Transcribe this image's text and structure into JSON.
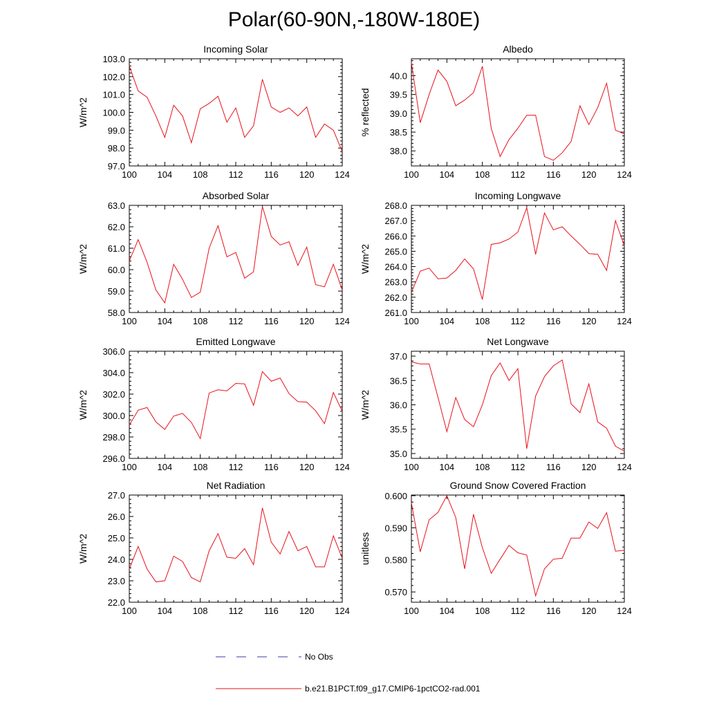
{
  "title": "Polar(60-90N,-180W-180E)",
  "colors": {
    "model_line": "#e8101a",
    "obs_line": "#3a3aa8",
    "axis": "#000000"
  },
  "legend": {
    "obs_label": "No Obs",
    "model_label": "b.e21.B1PCT.f09_g17.CMIP6-1pctCO2-rad.001"
  },
  "chart_data": [
    {
      "type": "line",
      "title": "Incoming Solar",
      "ylabel": "W/m^2",
      "xlim": [
        100,
        124
      ],
      "ylim": [
        97.0,
        103.0
      ],
      "xticks": [
        "100",
        "104",
        "108",
        "112",
        "116",
        "120",
        "124"
      ],
      "yticks": [
        "97.0",
        "98.0",
        "99.0",
        "100.0",
        "101.0",
        "102.0",
        "103.0"
      ],
      "x": [
        100,
        101,
        102,
        103,
        104,
        105,
        106,
        107,
        108,
        109,
        110,
        111,
        112,
        113,
        114,
        115,
        116,
        117,
        118,
        119,
        120,
        121,
        122,
        123,
        124
      ],
      "series": [
        {
          "name": "b.e21.B1PCT.f09_g17.CMIP6-1pctCO2-rad.001",
          "values": [
            102.6,
            101.2,
            100.85,
            99.8,
            98.6,
            100.4,
            99.8,
            98.3,
            100.2,
            100.5,
            100.9,
            99.45,
            100.25,
            98.6,
            99.25,
            101.85,
            100.3,
            100.0,
            100.25,
            99.8,
            100.3,
            98.6,
            99.35,
            99.0,
            97.8
          ]
        }
      ]
    },
    {
      "type": "line",
      "title": "Albedo",
      "ylabel": "% reflected",
      "xlim": [
        100,
        124
      ],
      "ylim": [
        37.6,
        40.45
      ],
      "xticks": [
        "100",
        "104",
        "108",
        "112",
        "116",
        "120",
        "124"
      ],
      "yticks": [
        "38.0",
        "38.5",
        "39.0",
        "39.5",
        "40.0"
      ],
      "x": [
        100,
        101,
        102,
        103,
        104,
        105,
        106,
        107,
        108,
        109,
        110,
        111,
        112,
        113,
        114,
        115,
        116,
        117,
        118,
        119,
        120,
        121,
        122,
        123,
        124
      ],
      "series": [
        {
          "name": "b.e21.B1PCT.f09_g17.CMIP6-1pctCO2-rad.001",
          "values": [
            40.35,
            38.75,
            39.5,
            40.15,
            39.85,
            39.2,
            39.35,
            39.55,
            40.25,
            38.6,
            37.85,
            38.3,
            38.6,
            38.95,
            38.95,
            37.85,
            37.75,
            37.95,
            38.25,
            39.2,
            38.7,
            39.15,
            39.8,
            38.55,
            38.45
          ]
        }
      ]
    },
    {
      "type": "line",
      "title": "Absorbed Solar",
      "ylabel": "W/m^2",
      "xlim": [
        100,
        124
      ],
      "ylim": [
        58.0,
        63.0
      ],
      "xticks": [
        "100",
        "104",
        "108",
        "112",
        "116",
        "120",
        "124"
      ],
      "yticks": [
        "58.0",
        "59.0",
        "60.0",
        "61.0",
        "62.0",
        "63.0"
      ],
      "x": [
        100,
        101,
        102,
        103,
        104,
        105,
        106,
        107,
        108,
        109,
        110,
        111,
        112,
        113,
        114,
        115,
        116,
        117,
        118,
        119,
        120,
        121,
        122,
        123,
        124
      ],
      "series": [
        {
          "name": "b.e21.B1PCT.f09_g17.CMIP6-1pctCO2-rad.001",
          "values": [
            60.4,
            61.4,
            60.35,
            59.05,
            58.45,
            60.25,
            59.55,
            58.7,
            58.95,
            61.0,
            62.05,
            60.6,
            60.8,
            59.6,
            59.9,
            62.95,
            61.55,
            61.15,
            61.3,
            60.2,
            61.05,
            59.3,
            59.2,
            60.25,
            59.05
          ]
        }
      ]
    },
    {
      "type": "line",
      "title": "Incoming Longwave",
      "ylabel": "W/m^2",
      "xlim": [
        100,
        124
      ],
      "ylim": [
        261.0,
        268.0
      ],
      "xticks": [
        "100",
        "104",
        "108",
        "112",
        "116",
        "120",
        "124"
      ],
      "yticks": [
        "261.0",
        "262.0",
        "263.0",
        "264.0",
        "265.0",
        "266.0",
        "267.0",
        "268.0"
      ],
      "x": [
        100,
        101,
        102,
        103,
        104,
        105,
        106,
        107,
        108,
        109,
        110,
        111,
        112,
        113,
        114,
        115,
        116,
        117,
        118,
        119,
        120,
        121,
        122,
        123,
        124
      ],
      "series": [
        {
          "name": "b.e21.B1PCT.f09_g17.CMIP6-1pctCO2-rad.001",
          "values": [
            262.3,
            263.7,
            263.9,
            263.2,
            263.25,
            263.75,
            264.5,
            263.85,
            261.85,
            265.45,
            265.55,
            265.8,
            266.25,
            267.85,
            264.8,
            267.5,
            266.4,
            266.6,
            266.0,
            265.45,
            264.85,
            264.8,
            263.75,
            267.0,
            265.35
          ]
        }
      ]
    },
    {
      "type": "line",
      "title": "Emitted Longwave",
      "ylabel": "W/m^2",
      "xlim": [
        100,
        124
      ],
      "ylim": [
        296.0,
        306.0
      ],
      "xticks": [
        "100",
        "104",
        "108",
        "112",
        "116",
        "120",
        "124"
      ],
      "yticks": [
        "296.0",
        "298.0",
        "300.0",
        "302.0",
        "304.0",
        "306.0"
      ],
      "x": [
        100,
        101,
        102,
        103,
        104,
        105,
        106,
        107,
        108,
        109,
        110,
        111,
        112,
        113,
        114,
        115,
        116,
        117,
        118,
        119,
        120,
        121,
        122,
        123,
        124
      ],
      "series": [
        {
          "name": "b.e21.B1PCT.f09_g17.CMIP6-1pctCO2-rad.001",
          "values": [
            299.1,
            300.5,
            300.75,
            299.4,
            298.7,
            299.95,
            300.2,
            299.35,
            297.85,
            302.1,
            302.4,
            302.3,
            303.0,
            302.95,
            300.95,
            304.1,
            303.2,
            303.5,
            302.05,
            301.3,
            301.25,
            300.45,
            299.25,
            302.15,
            300.4
          ]
        }
      ]
    },
    {
      "type": "line",
      "title": "Net Longwave",
      "ylabel": "W/m^2",
      "xlim": [
        100,
        124
      ],
      "ylim": [
        34.9,
        37.1
      ],
      "xticks": [
        "100",
        "104",
        "108",
        "112",
        "116",
        "120",
        "124"
      ],
      "yticks": [
        "35.0",
        "35.5",
        "36.0",
        "36.5",
        "37.0"
      ],
      "x": [
        100,
        101,
        102,
        103,
        104,
        105,
        106,
        107,
        108,
        109,
        110,
        111,
        112,
        113,
        114,
        115,
        116,
        117,
        118,
        119,
        120,
        121,
        122,
        123,
        124
      ],
      "series": [
        {
          "name": "b.e21.B1PCT.f09_g17.CMIP6-1pctCO2-rad.001",
          "values": [
            36.88,
            36.84,
            36.84,
            36.15,
            35.45,
            36.15,
            35.7,
            35.55,
            36.0,
            36.6,
            36.86,
            36.5,
            36.74,
            35.1,
            36.18,
            36.58,
            36.8,
            36.92,
            36.02,
            35.84,
            36.43,
            35.65,
            35.52,
            35.15,
            35.05
          ]
        }
      ]
    },
    {
      "type": "line",
      "title": "Net Radiation",
      "ylabel": "W/m^2",
      "xlim": [
        100,
        124
      ],
      "ylim": [
        22.0,
        27.0
      ],
      "xticks": [
        "100",
        "104",
        "108",
        "112",
        "116",
        "120",
        "124"
      ],
      "yticks": [
        "22.0",
        "23.0",
        "24.0",
        "25.0",
        "26.0",
        "27.0"
      ],
      "x": [
        100,
        101,
        102,
        103,
        104,
        105,
        106,
        107,
        108,
        109,
        110,
        111,
        112,
        113,
        114,
        115,
        116,
        117,
        118,
        119,
        120,
        121,
        122,
        123,
        124
      ],
      "series": [
        {
          "name": "b.e21.B1PCT.f09_g17.CMIP6-1pctCO2-rad.001",
          "values": [
            23.55,
            24.6,
            23.55,
            22.95,
            23.0,
            24.15,
            23.9,
            23.15,
            22.95,
            24.4,
            25.2,
            24.1,
            24.05,
            24.5,
            23.75,
            26.4,
            24.8,
            24.25,
            25.3,
            24.4,
            24.6,
            23.65,
            23.65,
            25.1,
            24.05
          ]
        }
      ]
    },
    {
      "type": "line",
      "title": "Ground Snow Covered Fraction",
      "ylabel": "unitless",
      "xlim": [
        100,
        124
      ],
      "ylim": [
        0.5668,
        0.6002
      ],
      "xticks": [
        "100",
        "104",
        "108",
        "112",
        "116",
        "120",
        "124"
      ],
      "yticks": [
        "0.570",
        "0.580",
        "0.590",
        "0.600"
      ],
      "x": [
        100,
        101,
        102,
        103,
        104,
        105,
        106,
        107,
        108,
        109,
        110,
        111,
        112,
        113,
        114,
        115,
        116,
        117,
        118,
        119,
        120,
        121,
        122,
        123,
        124
      ],
      "series": [
        {
          "name": "b.e21.B1PCT.f09_g17.CMIP6-1pctCO2-rad.001",
          "values": [
            0.5978,
            0.5825,
            0.5925,
            0.5948,
            0.6,
            0.5932,
            0.5772,
            0.5942,
            0.5838,
            0.5758,
            0.5802,
            0.5845,
            0.5822,
            0.5815,
            0.5688,
            0.5772,
            0.5802,
            0.5805,
            0.5868,
            0.5868,
            0.5918,
            0.5898,
            0.5947,
            0.5827,
            0.583
          ]
        }
      ]
    }
  ]
}
